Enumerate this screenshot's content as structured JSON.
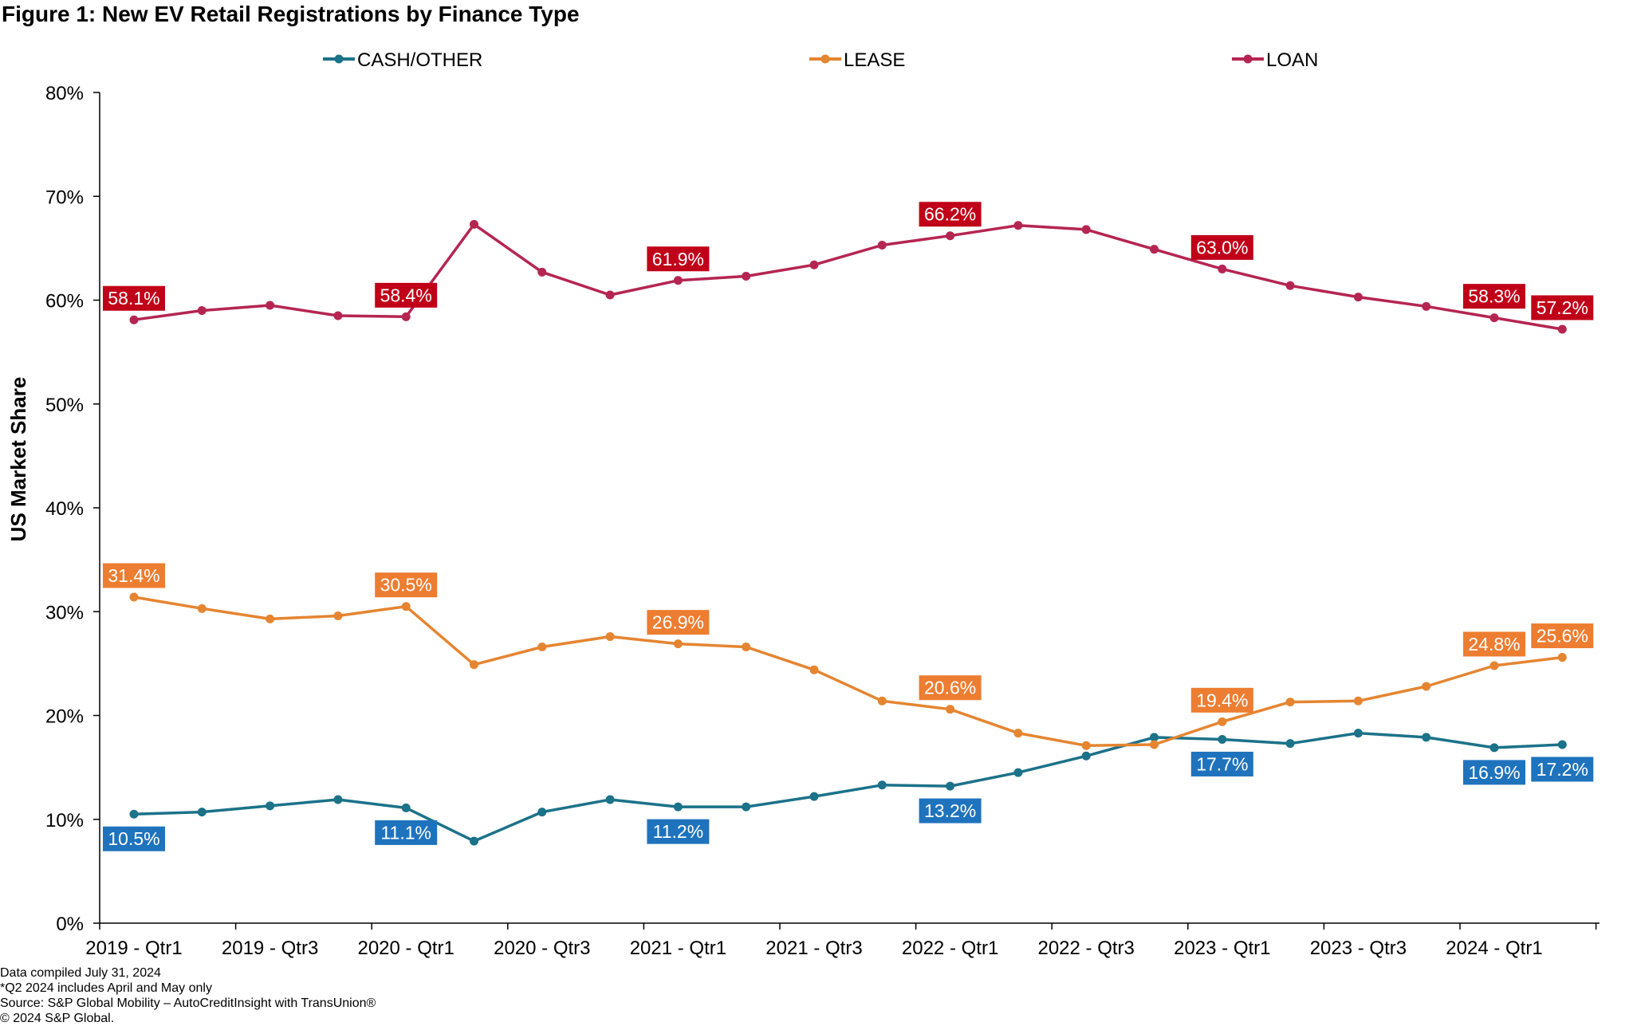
{
  "title": "Figure 1: New EV Retail Registrations by Finance Type",
  "footnotes": [
    "Data compiled July 31, 2024",
    "*Q2 2024 includes April and May only",
    "Source: S&P Global Mobility – AutoCreditInsight with TransUnion®",
    "© 2024 S&P Global."
  ],
  "colors": {
    "cash": "#1B7289",
    "lease": "#E58531",
    "loan": "#B52552",
    "cash_label_bg": "#1F73BD",
    "lease_label_bg": "#ED7D31",
    "loan_label_bg": "#C00018"
  },
  "chart_data": {
    "type": "line",
    "ylabel": "US Market Share",
    "xlabel": "",
    "ylim": [
      0,
      80
    ],
    "yticks": [
      "0%",
      "10%",
      "20%",
      "30%",
      "40%",
      "50%",
      "60%",
      "70%",
      "80%"
    ],
    "x": [
      "2019 - Qtr1",
      "2019 - Qtr2",
      "2019 - Qtr3",
      "2019 - Qtr4",
      "2020 - Qtr1",
      "2020 - Qtr2",
      "2020 - Qtr3",
      "2020 - Qtr4",
      "2021 - Qtr1",
      "2021 - Qtr2",
      "2021 - Qtr3",
      "2021 - Qtr4",
      "2022 - Qtr1",
      "2022 - Qtr2",
      "2022 - Qtr3",
      "2022 - Qtr4",
      "2023 - Qtr1",
      "2023 - Qtr2",
      "2023 - Qtr3",
      "2023 - Qtr4",
      "2024 - Qtr1",
      "2024 - Qtr2"
    ],
    "xtick_labels": [
      "2019 - Qtr1",
      "2019 - Qtr3",
      "2020 - Qtr1",
      "2020 - Qtr3",
      "2021 - Qtr1",
      "2021 - Qtr3",
      "2022 - Qtr1",
      "2022 - Qtr3",
      "2023 - Qtr1",
      "2023 - Qtr3",
      "2024 - Qtr1"
    ],
    "legend_position": "top",
    "grid": false,
    "series": [
      {
        "name": "CASH/OTHER",
        "key": "cash",
        "values": [
          10.5,
          10.7,
          11.3,
          11.9,
          11.1,
          7.9,
          10.7,
          11.9,
          11.2,
          11.2,
          12.2,
          13.3,
          13.2,
          14.5,
          16.1,
          17.9,
          17.7,
          17.3,
          18.3,
          17.9,
          16.9,
          17.2
        ],
        "data_labels": {
          "0": "10.5%",
          "4": "11.1%",
          "8": "11.2%",
          "12": "13.2%",
          "16": "17.7%",
          "20": "16.9%",
          "21": "17.2%"
        }
      },
      {
        "name": "LEASE",
        "key": "lease",
        "values": [
          31.4,
          30.3,
          29.3,
          29.6,
          30.5,
          24.9,
          26.6,
          27.6,
          26.9,
          26.6,
          24.4,
          21.4,
          20.6,
          18.3,
          17.1,
          17.2,
          19.4,
          21.3,
          21.4,
          22.8,
          24.8,
          25.6
        ],
        "data_labels": {
          "0": "31.4%",
          "4": "30.5%",
          "8": "26.9%",
          "12": "20.6%",
          "16": "19.4%",
          "20": "24.8%",
          "21": "25.6%"
        }
      },
      {
        "name": "LOAN",
        "key": "loan",
        "values": [
          58.1,
          59.0,
          59.5,
          58.5,
          58.4,
          67.3,
          62.7,
          60.5,
          61.9,
          62.3,
          63.4,
          65.3,
          66.2,
          67.2,
          66.8,
          64.9,
          63.0,
          61.4,
          60.3,
          59.4,
          58.3,
          57.2
        ],
        "data_labels": {
          "0": "58.1%",
          "4": "58.4%",
          "8": "61.9%",
          "12": "66.2%",
          "16": "63.0%",
          "20": "58.3%",
          "21": "57.2%"
        }
      }
    ]
  }
}
